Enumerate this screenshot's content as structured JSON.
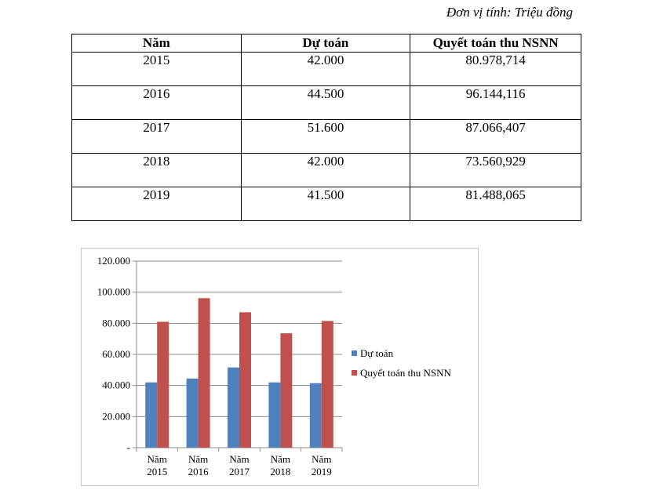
{
  "unit_note": "Đơn vị tính: Triệu đồng",
  "table": {
    "headers": [
      "Năm",
      "Dự toán",
      "Quyết toán thu NSNN"
    ],
    "rows": [
      [
        "2015",
        "42.000",
        "80.978,714"
      ],
      [
        "2016",
        "44.500",
        "96.144,116"
      ],
      [
        "2017",
        "51.600",
        "87.066,407"
      ],
      [
        "2018",
        "42.000",
        "73.560,929"
      ],
      [
        "2019",
        "41.500",
        "81.488,065"
      ]
    ]
  },
  "chart_data": {
    "type": "bar",
    "categories": [
      [
        "Năm",
        "2015"
      ],
      [
        "Năm",
        "2016"
      ],
      [
        "Năm",
        "2017"
      ],
      [
        "Năm",
        "2018"
      ],
      [
        "Năm",
        "2019"
      ]
    ],
    "series": [
      {
        "name": "Dự toán",
        "color": "#4f81bd",
        "values": [
          42000,
          44500,
          51600,
          42000,
          41500
        ]
      },
      {
        "name": "Quyết toán thu NSNN",
        "color": "#c0504d",
        "values": [
          80978.714,
          96144.116,
          87066.407,
          73560.929,
          81488.065
        ]
      }
    ],
    "ylim": [
      0,
      120000
    ],
    "yticks": [
      0,
      20000,
      40000,
      60000,
      80000,
      100000,
      120000
    ],
    "ytick_labels": [
      "-",
      "20.000",
      "40.000",
      "60.000",
      "80.000",
      "100.000",
      "120.000"
    ],
    "grid": "horizontal",
    "legend_position": "right"
  }
}
